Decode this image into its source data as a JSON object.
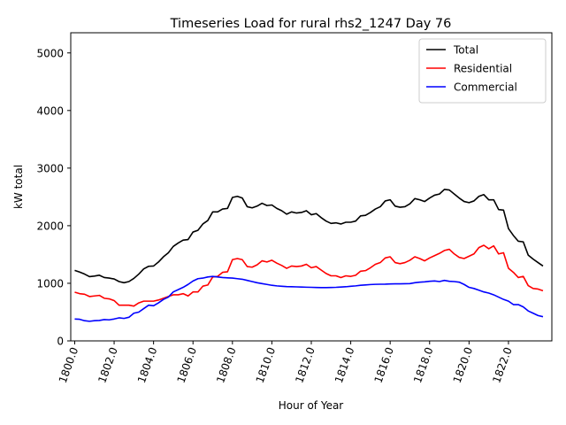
{
  "chart_data": {
    "type": "line",
    "title": "Timeseries Load for rural rhs2_1247  Day 76",
    "xlabel": "Hour of Year",
    "ylabel": "kW total",
    "xlim": [
      1799.8,
      1824.2
    ],
    "ylim": [
      0,
      5350
    ],
    "xticks": [
      1800,
      1802,
      1804,
      1806,
      1808,
      1810,
      1812,
      1814,
      1816,
      1818,
      1820,
      1822
    ],
    "xtick_labels": [
      "1800.0",
      "1802.0",
      "1804.0",
      "1806.0",
      "1808.0",
      "1810.0",
      "1812.0",
      "1814.0",
      "1816.0",
      "1818.0",
      "1820.0",
      "1822.0"
    ],
    "yticks": [
      0,
      1000,
      2000,
      3000,
      4000,
      5000
    ],
    "ytick_labels": [
      "0",
      "1000",
      "2000",
      "3000",
      "4000",
      "5000"
    ],
    "legend_position": "top-right",
    "x": [
      1800,
      1800.25,
      1800.5,
      1800.75,
      1801,
      1801.25,
      1801.5,
      1801.75,
      1802,
      1802.25,
      1802.5,
      1802.75,
      1803,
      1803.25,
      1803.5,
      1803.75,
      1804,
      1804.25,
      1804.5,
      1804.75,
      1805,
      1805.25,
      1805.5,
      1805.75,
      1806,
      1806.25,
      1806.5,
      1806.75,
      1807,
      1807.25,
      1807.5,
      1807.75,
      1808,
      1808.25,
      1808.5,
      1808.75,
      1809,
      1809.25,
      1809.5,
      1809.75,
      1810,
      1810.25,
      1810.5,
      1810.75,
      1811,
      1811.25,
      1811.5,
      1811.75,
      1812,
      1812.25,
      1812.5,
      1812.75,
      1813,
      1813.25,
      1813.5,
      1813.75,
      1814,
      1814.25,
      1814.5,
      1814.75,
      1815,
      1815.25,
      1815.5,
      1815.75,
      1816,
      1816.25,
      1816.5,
      1816.75,
      1817,
      1817.25,
      1817.5,
      1817.75,
      1818,
      1818.25,
      1818.5,
      1818.75,
      1819,
      1819.25,
      1819.5,
      1819.75,
      1820,
      1820.25,
      1820.5,
      1820.75,
      1821,
      1821.25,
      1821.5,
      1821.75,
      1822,
      1822.25,
      1822.5,
      1822.75,
      1823,
      1823.25,
      1823.5,
      1823.75
    ],
    "series": [
      {
        "name": "Total",
        "color": "#000000",
        "values": [
          1225,
          1195,
          1160,
          1115,
          1125,
          1140,
          1100,
          1090,
          1075,
          1030,
          1010,
          1030,
          1085,
          1160,
          1250,
          1295,
          1300,
          1370,
          1460,
          1530,
          1640,
          1700,
          1750,
          1760,
          1890,
          1920,
          2030,
          2090,
          2240,
          2240,
          2290,
          2300,
          2490,
          2510,
          2480,
          2330,
          2310,
          2340,
          2390,
          2350,
          2360,
          2300,
          2260,
          2200,
          2240,
          2220,
          2230,
          2260,
          2190,
          2210,
          2140,
          2080,
          2040,
          2050,
          2030,
          2060,
          2060,
          2080,
          2170,
          2180,
          2230,
          2290,
          2330,
          2430,
          2450,
          2340,
          2320,
          2330,
          2380,
          2470,
          2450,
          2420,
          2480,
          2530,
          2550,
          2630,
          2620,
          2550,
          2480,
          2420,
          2400,
          2430,
          2510,
          2540,
          2450,
          2450,
          2280,
          2270,
          1950,
          1830,
          1730,
          1720,
          1490,
          1420,
          1360,
          1300
        ]
      },
      {
        "name": "Residential",
        "color": "#ff0000",
        "values": [
          845,
          820,
          810,
          770,
          780,
          790,
          740,
          730,
          700,
          620,
          620,
          620,
          605,
          660,
          690,
          690,
          690,
          710,
          740,
          770,
          800,
          800,
          820,
          780,
          850,
          850,
          950,
          970,
          1110,
          1120,
          1190,
          1200,
          1410,
          1430,
          1410,
          1290,
          1280,
          1320,
          1390,
          1370,
          1400,
          1350,
          1310,
          1260,
          1300,
          1290,
          1300,
          1330,
          1270,
          1290,
          1230,
          1170,
          1130,
          1130,
          1100,
          1130,
          1120,
          1140,
          1210,
          1220,
          1270,
          1330,
          1360,
          1440,
          1460,
          1360,
          1340,
          1360,
          1400,
          1460,
          1430,
          1390,
          1440,
          1480,
          1520,
          1570,
          1590,
          1510,
          1450,
          1430,
          1470,
          1510,
          1620,
          1660,
          1600,
          1650,
          1510,
          1530,
          1260,
          1190,
          1100,
          1120,
          960,
          910,
          900,
          870
        ]
      },
      {
        "name": "Commercial",
        "color": "#0000ff",
        "values": [
          380,
          375,
          350,
          340,
          350,
          355,
          370,
          365,
          380,
          400,
          390,
          410,
          480,
          500,
          560,
          620,
          610,
          660,
          720,
          760,
          850,
          890,
          930,
          980,
          1040,
          1080,
          1090,
          1110,
          1120,
          1110,
          1100,
          1095,
          1090,
          1080,
          1070,
          1050,
          1030,
          1010,
          995,
          980,
          965,
          955,
          948,
          942,
          940,
          938,
          935,
          932,
          930,
          928,
          925,
          925,
          928,
          930,
          935,
          940,
          948,
          955,
          965,
          972,
          978,
          982,
          984,
          985,
          988,
          990,
          990,
          992,
          995,
          1010,
          1020,
          1025,
          1035,
          1040,
          1030,
          1050,
          1035,
          1030,
          1020,
          980,
          930,
          910,
          880,
          850,
          830,
          800,
          760,
          720,
          690,
          630,
          630,
          590,
          520,
          480,
          440,
          420
        ]
      }
    ]
  }
}
